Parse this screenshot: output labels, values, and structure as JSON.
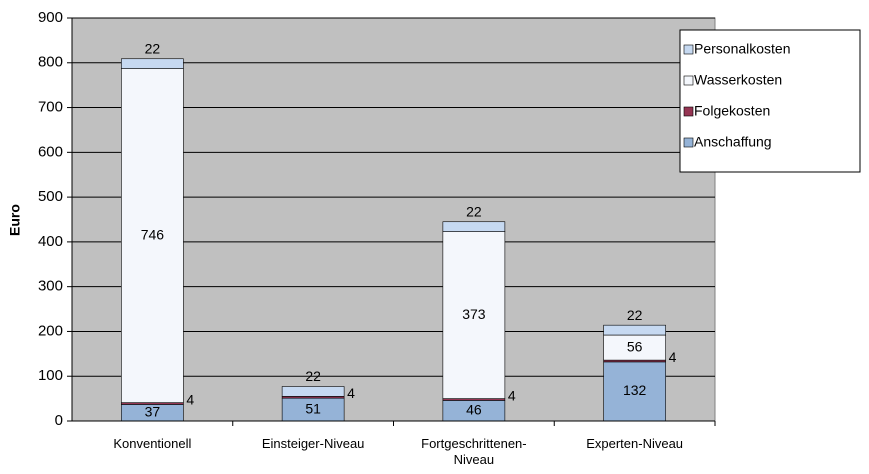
{
  "chart_data": {
    "type": "bar",
    "stacked": true,
    "y_label": "Euro",
    "categories": [
      "Konventionell",
      "Einsteiger-Niveau",
      "Fortgeschrittenen-Niveau",
      "Experten-Niveau"
    ],
    "series": [
      {
        "name": "Anschaffung",
        "color": "#95b3d7",
        "values": [
          37,
          51,
          46,
          132
        ]
      },
      {
        "name": "Folgekosten",
        "color": "#953553",
        "values": [
          4,
          4,
          4,
          4
        ]
      },
      {
        "name": "Wasserkosten",
        "color": "#f4f7fc",
        "values": [
          746,
          null,
          373,
          56
        ]
      },
      {
        "name": "Personalkosten",
        "color": "#c6d9f1",
        "values": [
          22,
          22,
          22,
          22
        ]
      }
    ],
    "ylim": [
      0,
      900
    ],
    "yticks": [
      0,
      100,
      200,
      300,
      400,
      500,
      600,
      700,
      800,
      900
    ],
    "grid": true
  }
}
